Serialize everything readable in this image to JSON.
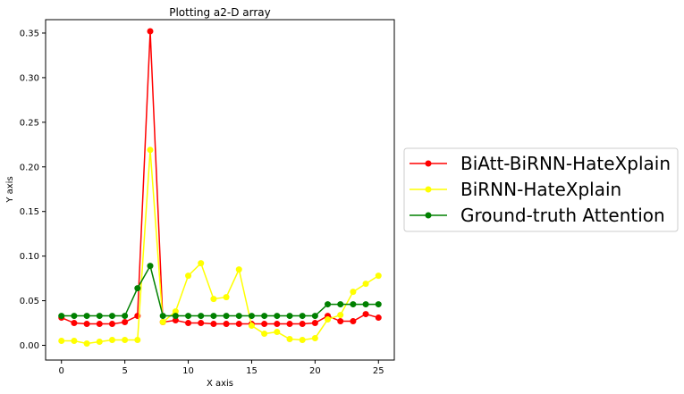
{
  "chart_data": {
    "type": "line",
    "title": "Plotting a2-D array",
    "xlabel": "X axis",
    "ylabel": "Y axis",
    "xlim": [
      -1.25,
      26.25
    ],
    "ylim": [
      -0.0165,
      0.365
    ],
    "xticks": [
      0,
      5,
      10,
      15,
      20,
      25
    ],
    "yticks": [
      0.0,
      0.05,
      0.1,
      0.15,
      0.2,
      0.25,
      0.3,
      0.35
    ],
    "ytick_labels": [
      "0.00",
      "0.05",
      "0.10",
      "0.15",
      "0.20",
      "0.25",
      "0.30",
      "0.35"
    ],
    "xtick_labels": [
      "0",
      "5",
      "10",
      "15",
      "20",
      "25"
    ],
    "grid": false,
    "legend_placement": "outside-right",
    "x": [
      0,
      1,
      2,
      3,
      4,
      5,
      6,
      7,
      8,
      9,
      10,
      11,
      12,
      13,
      14,
      15,
      16,
      17,
      18,
      19,
      20,
      21,
      22,
      23,
      24,
      25
    ],
    "series": [
      {
        "name": "BiAtt-BiRNN-HateXplain",
        "color": "#ff0000",
        "values": [
          0.031,
          0.025,
          0.024,
          0.024,
          0.024,
          0.026,
          0.033,
          0.352,
          0.026,
          0.028,
          0.025,
          0.025,
          0.024,
          0.024,
          0.024,
          0.024,
          0.024,
          0.024,
          0.024,
          0.024,
          0.025,
          0.033,
          0.027,
          0.027,
          0.035,
          0.031
        ]
      },
      {
        "name": "BiRNN-HateXplain",
        "color": "#ffff00",
        "values": [
          0.005,
          0.005,
          0.002,
          0.004,
          0.006,
          0.006,
          0.006,
          0.219,
          0.026,
          0.038,
          0.078,
          0.092,
          0.052,
          0.054,
          0.085,
          0.022,
          0.013,
          0.015,
          0.007,
          0.006,
          0.008,
          0.029,
          0.034,
          0.06,
          0.069,
          0.078
        ]
      },
      {
        "name": "Ground-truth Attention",
        "color": "#008000",
        "values": [
          0.033,
          0.033,
          0.033,
          0.033,
          0.033,
          0.033,
          0.064,
          0.089,
          0.033,
          0.033,
          0.033,
          0.033,
          0.033,
          0.033,
          0.033,
          0.033,
          0.033,
          0.033,
          0.033,
          0.033,
          0.033,
          0.046,
          0.046,
          0.046,
          0.046,
          0.046
        ]
      }
    ]
  }
}
